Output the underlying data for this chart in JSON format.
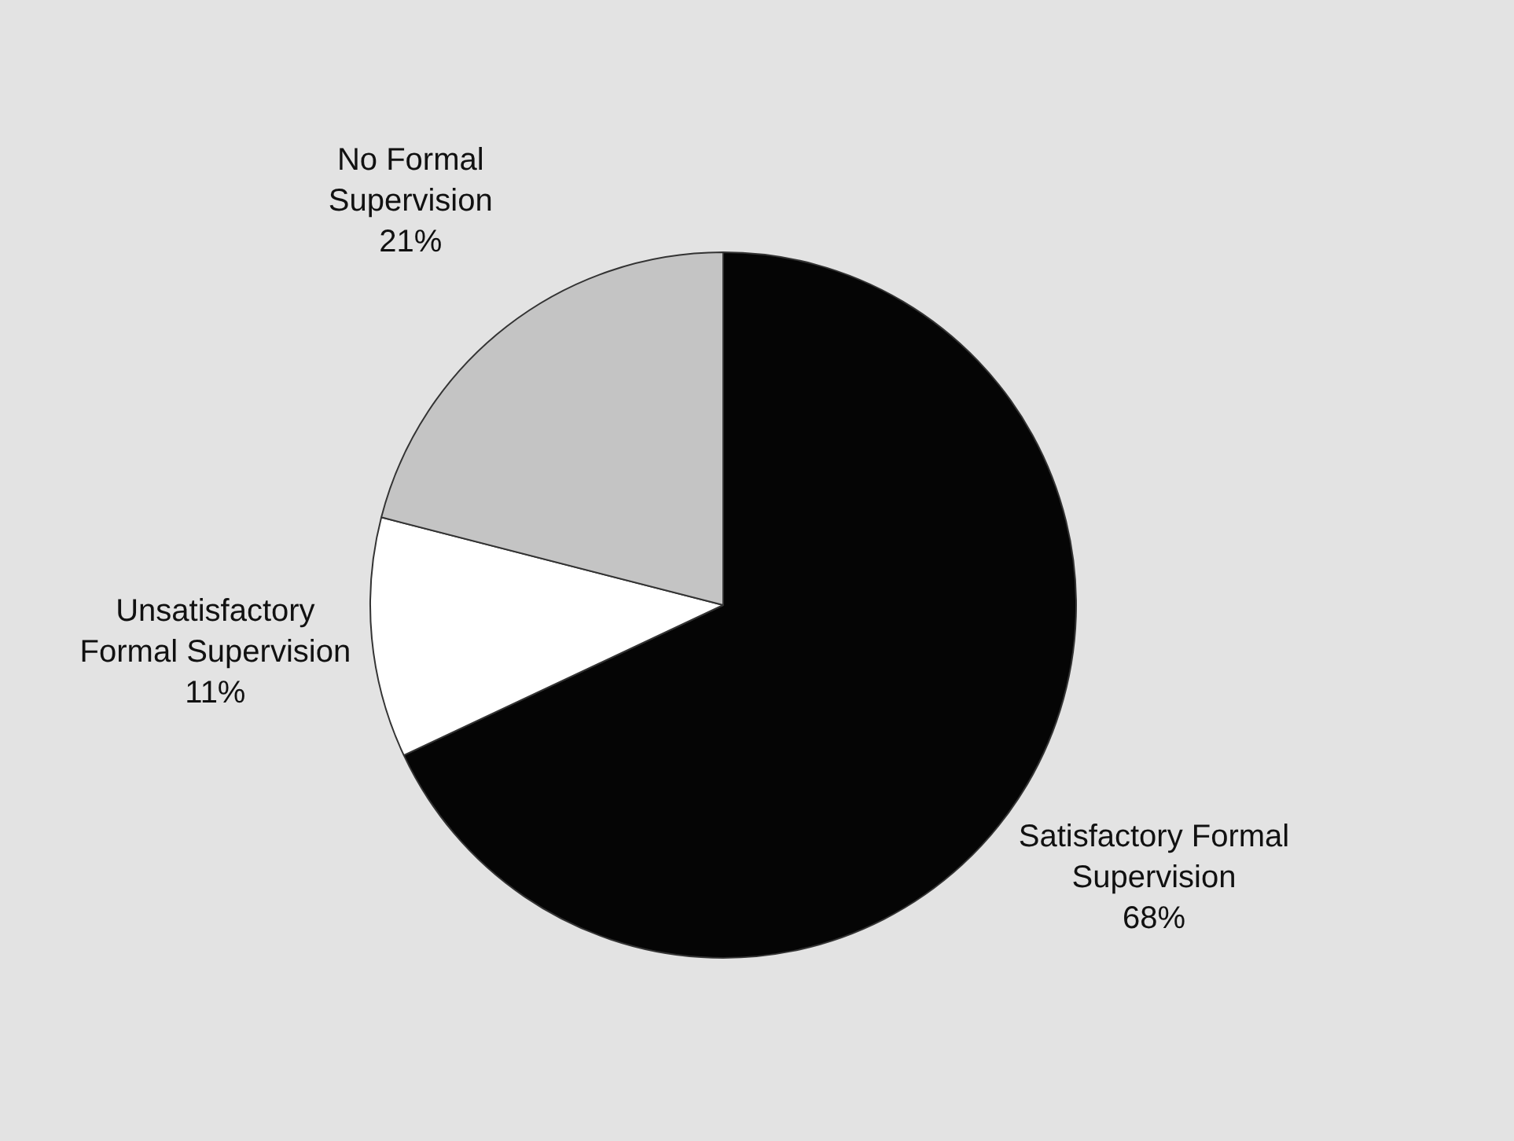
{
  "chart_data": {
    "type": "pie",
    "categories": [
      "Satisfactory Formal Supervision",
      "Unsatisfactory Formal Supervision",
      "No Formal Supervision"
    ],
    "values": [
      68,
      11,
      21
    ],
    "colors": [
      "#050505",
      "#ffffff",
      "#c4c4c4"
    ],
    "value_labels": [
      "68%",
      "11%",
      "21%"
    ]
  }
}
